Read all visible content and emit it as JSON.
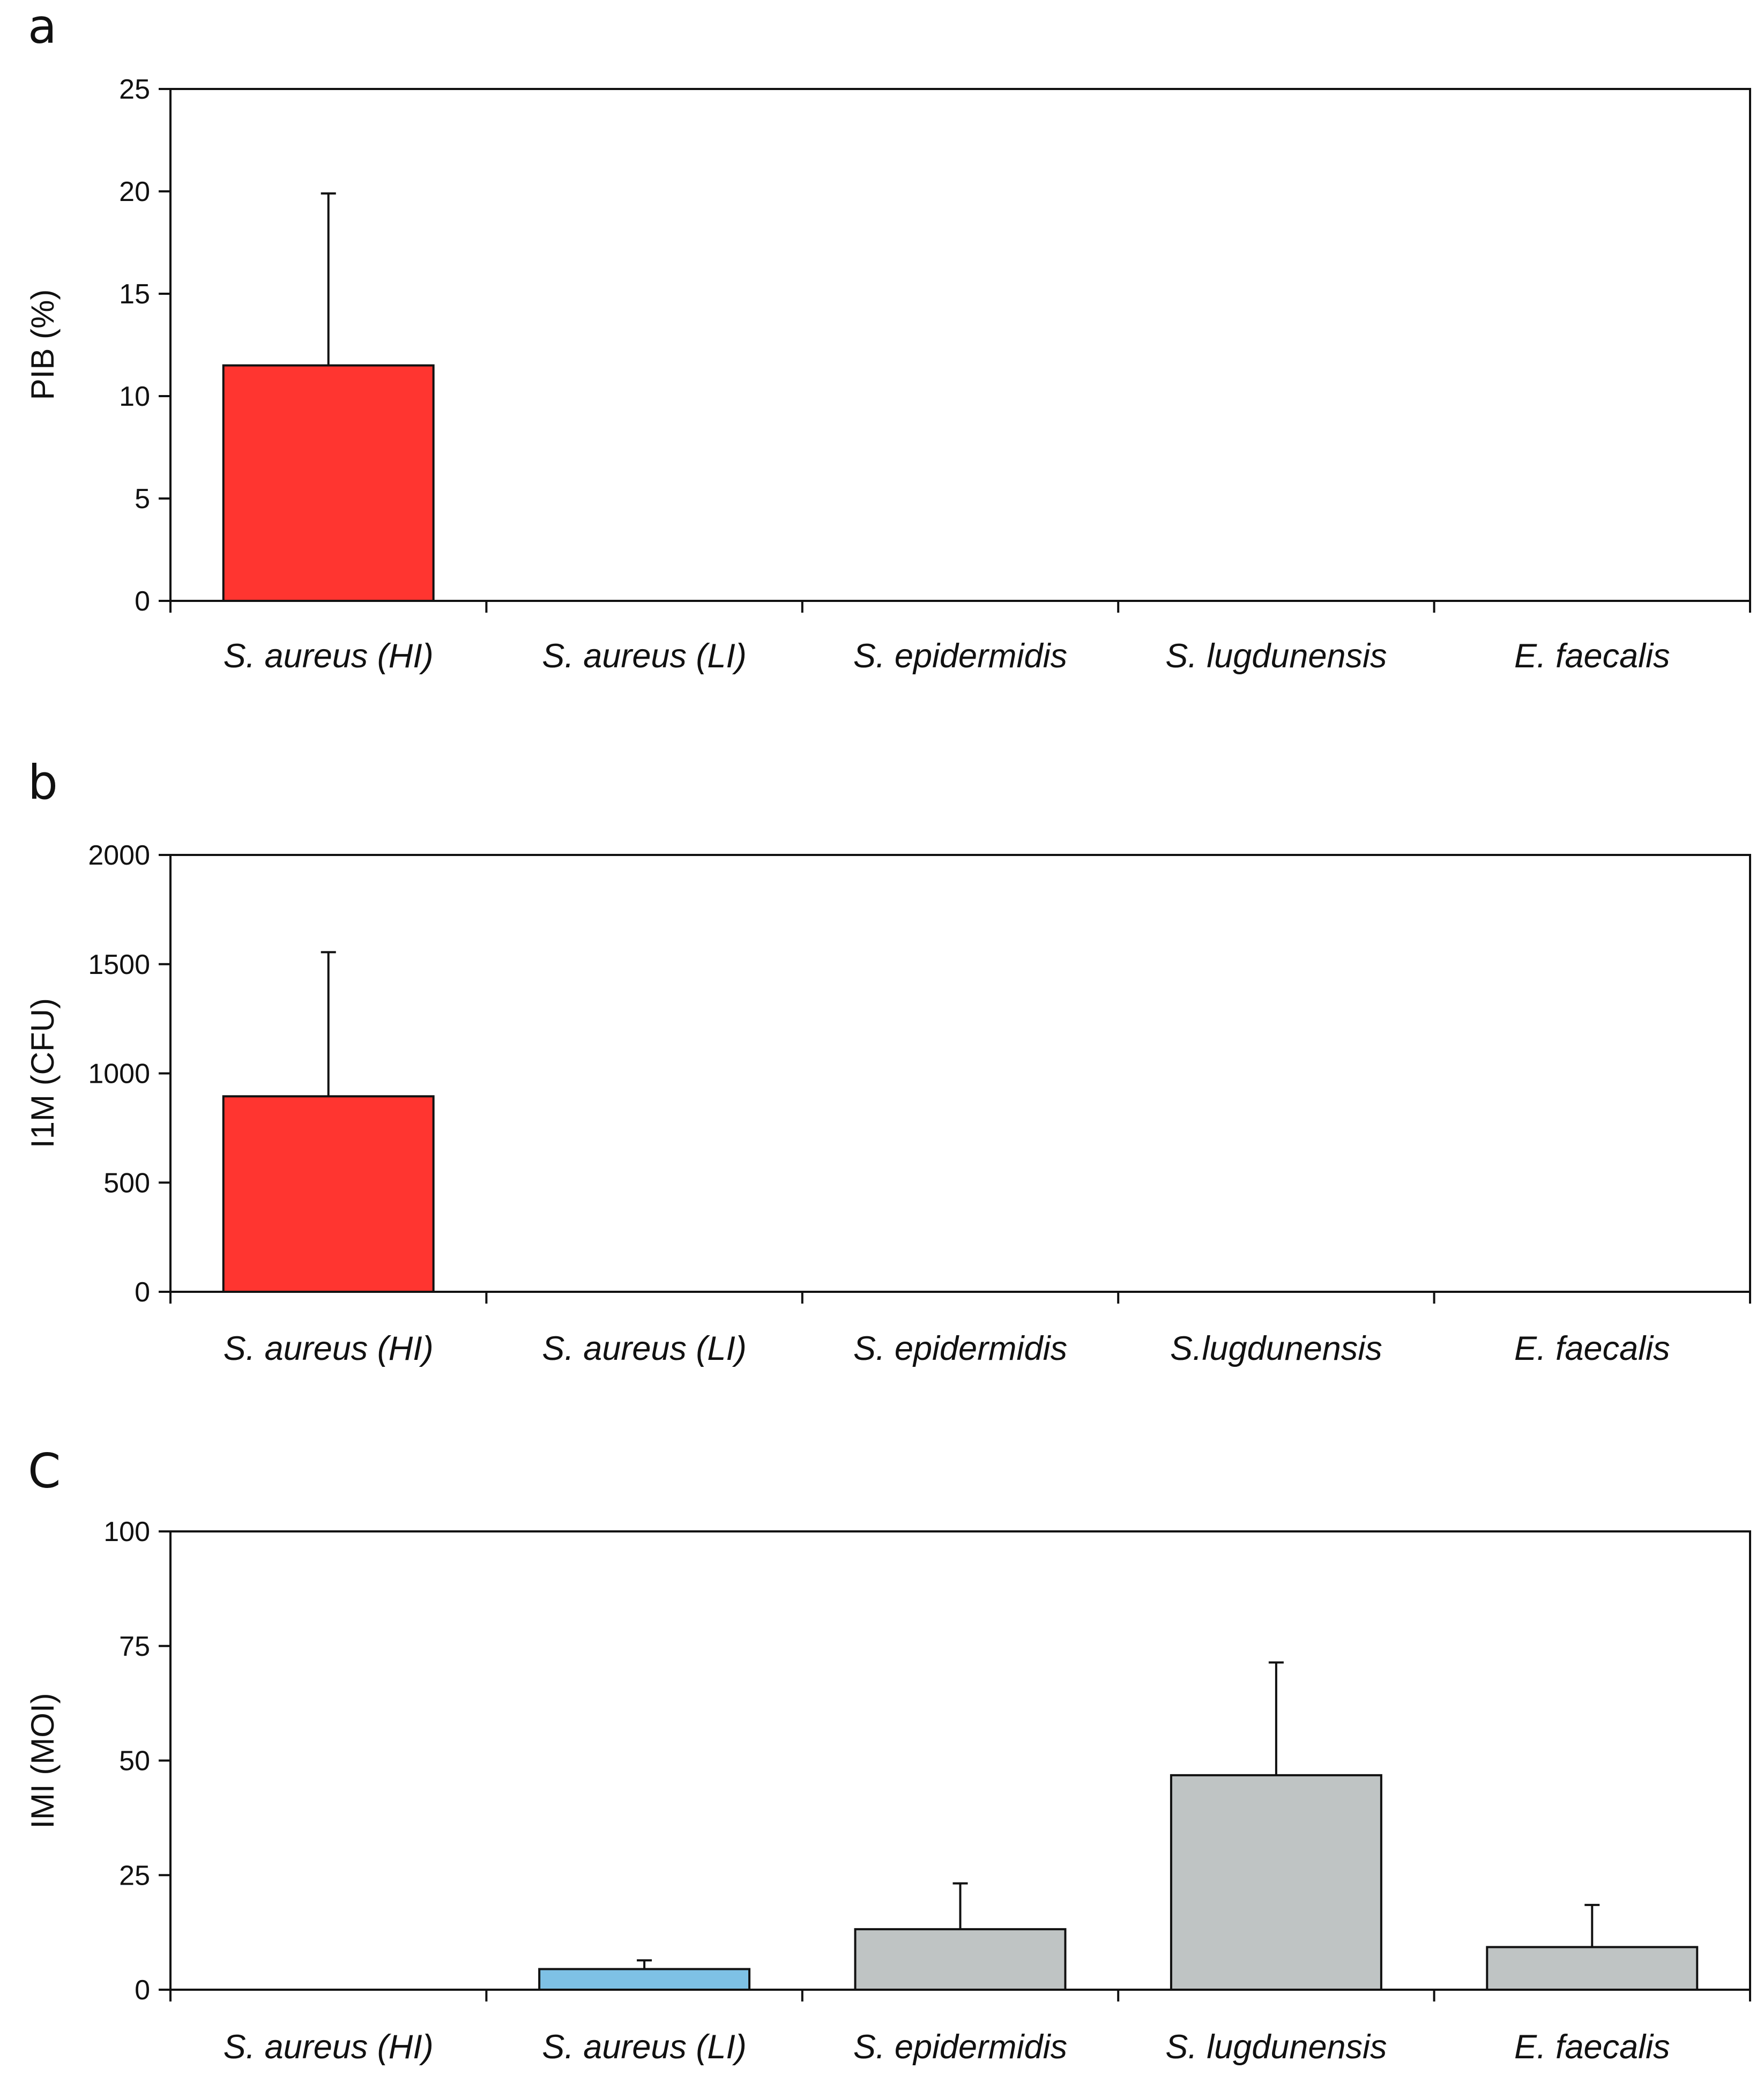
{
  "chart_data": [
    {
      "type": "bar",
      "panel": "a",
      "ylabel": "PIB (%)",
      "ylim": [
        0,
        25
      ],
      "yticks": [
        0,
        5,
        10,
        15,
        20,
        25
      ],
      "categories": [
        "S. aureus (HI)",
        "S. aureus (LI)",
        "S. epidermidis",
        "S. lugdunensis",
        "E. faecalis"
      ],
      "values": [
        11.5,
        0,
        0,
        0,
        0
      ],
      "errors": [
        8.4,
        0,
        0,
        0,
        0
      ],
      "colors": [
        "#ff3530",
        "#ff3530",
        "#ff3530",
        "#ff3530",
        "#ff3530"
      ]
    },
    {
      "type": "bar",
      "panel": "b",
      "ylabel": "I1M (CFU)",
      "ylim": [
        0,
        2000
      ],
      "yticks": [
        0,
        500,
        1000,
        1500,
        2000
      ],
      "categories": [
        "S. aureus (HI)",
        "S. aureus (LI)",
        "S. epidermidis",
        "S.lugdunensis",
        "E. faecalis"
      ],
      "values": [
        895,
        0,
        0,
        0,
        0
      ],
      "errors": [
        660,
        0,
        0,
        0,
        0
      ],
      "colors": [
        "#ff3530",
        "#ff3530",
        "#ff3530",
        "#ff3530",
        "#ff3530"
      ]
    },
    {
      "type": "bar",
      "panel": "C",
      "ylabel": "IMI (MOI)",
      "ylim": [
        0,
        100
      ],
      "yticks": [
        0,
        25,
        50,
        75,
        100
      ],
      "categories": [
        "S. aureus (HI)",
        "S. aureus (LI)",
        "S. epidermidis",
        "S. lugdunensis",
        "E. faecalis"
      ],
      "values": [
        0,
        4.5,
        13.2,
        46.8,
        9.3
      ],
      "errors": [
        0,
        1.9,
        10.0,
        24.6,
        9.2
      ],
      "colors": [
        "#bfc4c4",
        "#7ec1e5",
        "#bfc4c4",
        "#bfc4c4",
        "#bfc4c4"
      ]
    }
  ]
}
